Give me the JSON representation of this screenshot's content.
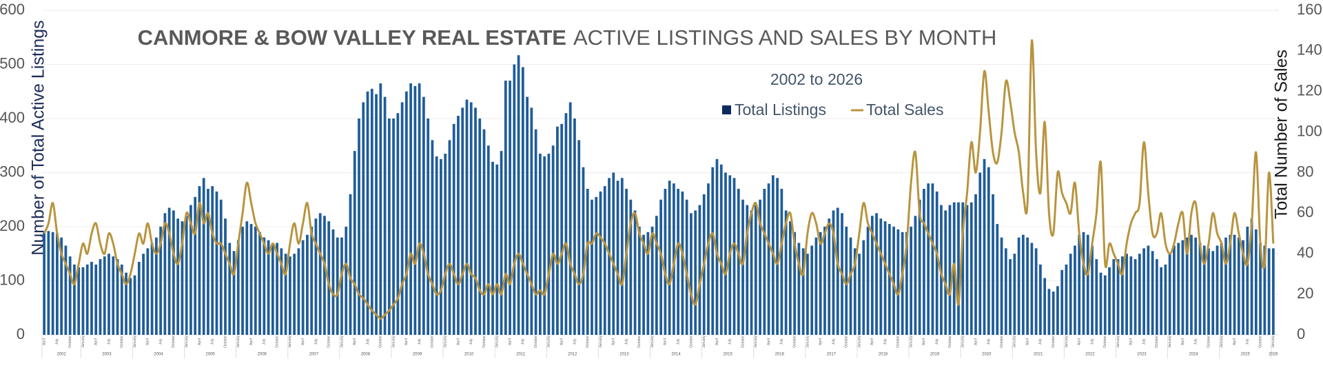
{
  "chart_data": {
    "type": "bar",
    "title": "CANMORE & BOW VALLEY REAL ESTATE",
    "title_rest": "ACTIVE LISTINGS AND SALES BY MONTH",
    "subtitle": "2002 to 2026",
    "y_label": "Number of Total Active Listings",
    "y2_label": "Total Number of Sales",
    "ylim": [
      0,
      600
    ],
    "yticks": [
      0,
      100,
      200,
      300,
      400,
      500,
      600
    ],
    "y2lim": [
      0,
      160
    ],
    "y2ticks": [
      0,
      20,
      40,
      60,
      80,
      100,
      120,
      140,
      160
    ],
    "grid": true,
    "legend": "top",
    "years": [
      "2002",
      "2003",
      "2004",
      "2005",
      "2006",
      "2007",
      "2008",
      "2009",
      "2010",
      "2011",
      "2012",
      "2013",
      "2014",
      "2015",
      "2016",
      "2017",
      "2018",
      "2019",
      "2020",
      "2021",
      "2022",
      "2023",
      "2024",
      "2025",
      "2026"
    ],
    "categories": [
      "April",
      null,
      null,
      "July",
      null,
      null,
      "October",
      null,
      null,
      "January",
      null,
      null,
      "April",
      null,
      null,
      "July",
      null,
      null,
      "October",
      null,
      null,
      "January",
      null,
      null,
      "April",
      null,
      null,
      "July",
      null,
      null,
      "October",
      null,
      null,
      "January",
      null,
      null,
      "April",
      null,
      null,
      "July",
      null,
      null,
      "October",
      null,
      null,
      "January",
      null,
      null,
      "April",
      null,
      null,
      "July",
      null,
      null,
      "October",
      null,
      null,
      "January",
      null,
      null,
      "April",
      null,
      null,
      "July",
      null,
      null,
      "October",
      null,
      null,
      "January",
      null,
      null,
      "April",
      null,
      null,
      "July",
      null,
      null,
      "October",
      null,
      null,
      "January",
      null,
      null,
      "April",
      null,
      null,
      "July",
      null,
      null,
      "October",
      null,
      null,
      "January",
      null,
      null,
      "April",
      null,
      null,
      "July",
      null,
      null,
      "October",
      null,
      null,
      "January",
      null,
      null,
      "April",
      null,
      null,
      "July",
      null,
      null,
      "October",
      null,
      null,
      "January",
      null,
      null,
      "April",
      null,
      null,
      "July",
      null,
      null,
      "October",
      null,
      null,
      "January",
      null,
      null,
      "April",
      null,
      null,
      "July",
      null,
      null,
      "October",
      null,
      null,
      "January",
      null,
      null,
      "April",
      null,
      null,
      "July",
      null,
      null,
      "October",
      null,
      null,
      "January",
      null,
      null,
      "April",
      null,
      null,
      "July",
      null,
      null,
      "October",
      null,
      null,
      "January",
      null,
      null,
      "April",
      null,
      null,
      "July",
      null,
      null,
      "October",
      null,
      null,
      "January",
      null,
      null,
      "April",
      null,
      null,
      "July",
      null,
      null,
      "October",
      null,
      null,
      "January",
      null,
      null,
      "April",
      null,
      null,
      "July",
      null,
      null,
      "October",
      null,
      null,
      "January",
      null,
      null,
      "April",
      null,
      null,
      "July",
      null,
      null,
      "October",
      null,
      null,
      "January",
      null,
      null,
      "April",
      null,
      null,
      "July",
      null,
      null,
      "October",
      null,
      null,
      "January",
      null,
      null,
      "April",
      null,
      null,
      "July",
      null,
      null,
      "October",
      null,
      null,
      "January",
      null,
      null,
      "April",
      null,
      null,
      "July",
      null,
      null,
      "October",
      null,
      null,
      "January",
      null,
      null,
      "April",
      null,
      null,
      "July",
      null,
      null,
      "October",
      null,
      null,
      "January",
      null,
      null,
      "April",
      null,
      null,
      "July",
      null,
      null,
      "October",
      null,
      null,
      "January",
      null,
      null,
      "April",
      null,
      null,
      "July",
      null,
      null,
      "October",
      null,
      null,
      "January"
    ],
    "series": [
      {
        "name": "Total Listings",
        "type": "bar",
        "color": "#1f5c99",
        "legend_color": "#0d2b5e",
        "values": [
          190,
          192,
          190,
          188,
          180,
          165,
          145,
          130,
          125,
          125,
          130,
          135,
          130,
          140,
          145,
          150,
          145,
          140,
          130,
          115,
          105,
          110,
          135,
          150,
          160,
          170,
          180,
          200,
          225,
          235,
          230,
          215,
          210,
          220,
          240,
          255,
          275,
          290,
          270,
          275,
          265,
          250,
          215,
          170,
          155,
          175,
          200,
          210,
          205,
          200,
          190,
          180,
          175,
          170,
          170,
          160,
          150,
          145,
          150,
          160,
          175,
          185,
          200,
          215,
          225,
          220,
          210,
          195,
          180,
          180,
          200,
          260,
          340,
          400,
          430,
          450,
          455,
          445,
          465,
          440,
          400,
          400,
          410,
          430,
          450,
          465,
          460,
          465,
          440,
          400,
          360,
          330,
          325,
          335,
          360,
          390,
          405,
          420,
          435,
          430,
          420,
          400,
          380,
          350,
          320,
          315,
          340,
          470,
          470,
          500,
          517,
          495,
          440,
          420,
          380,
          335,
          330,
          335,
          350,
          385,
          390,
          410,
          430,
          400,
          360,
          310,
          270,
          250,
          255,
          265,
          275,
          290,
          300,
          285,
          290,
          270,
          250,
          230,
          200,
          185,
          190,
          200,
          220,
          250,
          270,
          285,
          280,
          270,
          265,
          250,
          225,
          230,
          240,
          260,
          280,
          310,
          325,
          315,
          300,
          295,
          290,
          270,
          250,
          240,
          230,
          240,
          250,
          270,
          280,
          295,
          290,
          270,
          230,
          210,
          190,
          170,
          160,
          150,
          165,
          180,
          190,
          200,
          215,
          230,
          235,
          225,
          200,
          180,
          160,
          150,
          175,
          200,
          220,
          225,
          215,
          210,
          205,
          200,
          195,
          190,
          190,
          200,
          220,
          250,
          270,
          280,
          280,
          265,
          240,
          230,
          240,
          245,
          245,
          245,
          240,
          245,
          260,
          300,
          325,
          310,
          260,
          205,
          180,
          160,
          140,
          150,
          180,
          185,
          180,
          170,
          160,
          130,
          105,
          85,
          80,
          90,
          120,
          130,
          150,
          165,
          185,
          190,
          185,
          165,
          140,
          115,
          110,
          125,
          140,
          140,
          145,
          150,
          145,
          140,
          150,
          160,
          165,
          155,
          140,
          125,
          130,
          150,
          165,
          170,
          175,
          180,
          185,
          180,
          170,
          165,
          160,
          155,
          165,
          170,
          180,
          185,
          185,
          180,
          175,
          200,
          215,
          195,
          170,
          165,
          160,
          160
        ]
      },
      {
        "name": "Total Sales",
        "type": "line",
        "axis": "y2",
        "color": "#b8943e",
        "values": [
          50,
          55,
          65,
          50,
          40,
          35,
          30,
          25,
          35,
          45,
          40,
          50,
          55,
          45,
          40,
          50,
          45,
          35,
          30,
          25,
          30,
          40,
          50,
          45,
          55,
          45,
          40,
          45,
          55,
          50,
          40,
          35,
          45,
          60,
          55,
          50,
          65,
          55,
          60,
          50,
          45,
          45,
          40,
          35,
          30,
          45,
          60,
          75,
          65,
          55,
          50,
          45,
          40,
          45,
          40,
          35,
          30,
          45,
          55,
          45,
          55,
          65,
          50,
          45,
          40,
          35,
          25,
          20,
          20,
          30,
          35,
          28,
          25,
          20,
          18,
          15,
          12,
          10,
          8,
          10,
          12,
          15,
          18,
          25,
          30,
          40,
          35,
          45,
          40,
          30,
          25,
          20,
          22,
          30,
          35,
          30,
          25,
          30,
          35,
          30,
          28,
          22,
          20,
          25,
          20,
          25,
          20,
          30,
          25,
          35,
          40,
          35,
          30,
          25,
          20,
          22,
          20,
          30,
          40,
          35,
          40,
          45,
          35,
          30,
          25,
          30,
          45,
          45,
          50,
          48,
          45,
          40,
          35,
          30,
          25,
          40,
          55,
          60,
          50,
          45,
          40,
          50,
          45,
          40,
          30,
          25,
          35,
          45,
          40,
          30,
          20,
          15,
          25,
          35,
          45,
          50,
          40,
          35,
          30,
          40,
          45,
          40,
          35,
          50,
          60,
          65,
          55,
          50,
          45,
          40,
          35,
          45,
          55,
          60,
          45,
          35,
          30,
          50,
          60,
          55,
          45,
          50,
          55,
          50,
          35,
          30,
          25,
          30,
          35,
          50,
          65,
          55,
          50,
          45,
          40,
          35,
          30,
          25,
          20,
          30,
          45,
          75,
          90,
          60,
          55,
          50,
          45,
          40,
          30,
          25,
          20,
          35,
          15,
          50,
          70,
          95,
          80,
          100,
          130,
          110,
          90,
          85,
          100,
          125,
          115,
          100,
          90,
          70,
          65,
          145,
          90,
          70,
          105,
          60,
          50,
          80,
          70,
          65,
          60,
          75,
          50,
          35,
          30,
          45,
          60,
          85,
          35,
          45,
          40,
          35,
          30,
          45,
          55,
          60,
          65,
          95,
          70,
          50,
          50,
          60,
          45,
          40,
          45,
          55,
          60,
          40,
          60,
          65,
          45,
          35,
          45,
          60,
          50,
          45,
          35,
          45,
          60,
          50,
          40,
          35,
          55,
          90,
          45,
          35,
          80,
          45
        ]
      }
    ]
  }
}
